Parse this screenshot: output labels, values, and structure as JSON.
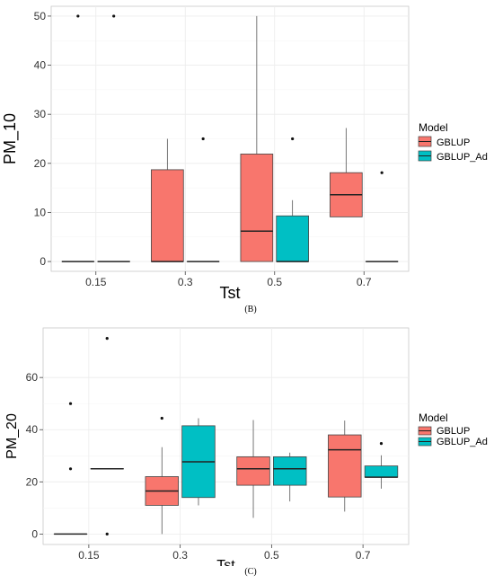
{
  "chart_data": [
    {
      "type": "box",
      "panel": "B",
      "xlabel": "Tst",
      "ylabel": "PM_10",
      "categories": [
        "0.15",
        "0.3",
        "0.5",
        "0.7"
      ],
      "ylim": [
        -2,
        52
      ],
      "yticks": [
        0,
        10,
        20,
        30,
        40,
        50
      ],
      "legend": {
        "title": "Model",
        "entries": [
          "GBLUP",
          "GBLUP_Ad"
        ],
        "placement": "right"
      },
      "series": [
        {
          "name": "GBLUP",
          "color": "#F8766D",
          "boxes": [
            {
              "category": "0.15",
              "min": 0,
              "q1": 0,
              "median": 0,
              "q3": 0,
              "max": 0,
              "outliers": [
                50
              ]
            },
            {
              "category": "0.3",
              "min": 0,
              "q1": 0,
              "median": 0,
              "q3": 18.7,
              "max": 25,
              "outliers": []
            },
            {
              "category": "0.5",
              "min": 0,
              "q1": 0,
              "median": 6.2,
              "q3": 21.9,
              "max": 50,
              "outliers": []
            },
            {
              "category": "0.7",
              "min": 9.1,
              "q1": 9.1,
              "median": 13.6,
              "q3": 18.1,
              "max": 27.2,
              "outliers": []
            }
          ]
        },
        {
          "name": "GBLUP_Ad",
          "color": "#00BFC4",
          "boxes": [
            {
              "category": "0.15",
              "min": 0,
              "q1": 0,
              "median": 0,
              "q3": 0,
              "max": 0,
              "outliers": [
                50
              ]
            },
            {
              "category": "0.3",
              "min": 0,
              "q1": 0,
              "median": 0,
              "q3": 0,
              "max": 0,
              "outliers": [
                25
              ]
            },
            {
              "category": "0.5",
              "min": 0,
              "q1": 0,
              "median": 0,
              "q3": 9.3,
              "max": 12.5,
              "outliers": [
                25
              ]
            },
            {
              "category": "0.7",
              "min": 0,
              "q1": 0,
              "median": 0,
              "q3": 0,
              "max": 0,
              "outliers": [
                18.1
              ]
            }
          ]
        }
      ]
    },
    {
      "type": "box",
      "panel": "C",
      "xlabel": "Tst",
      "ylabel": "PM_20",
      "categories": [
        "0.15",
        "0.3",
        "0.5",
        "0.7"
      ],
      "ylim": [
        -4,
        79
      ],
      "yticks": [
        0,
        20,
        40,
        60
      ],
      "legend": {
        "title": "Model",
        "entries": [
          "GBLUP",
          "GBLUP_Ad"
        ],
        "placement": "right"
      },
      "series": [
        {
          "name": "GBLUP",
          "color": "#F8766D",
          "boxes": [
            {
              "category": "0.15",
              "min": 0,
              "q1": 0,
              "median": 0,
              "q3": 0,
              "max": 0,
              "outliers": [
                25,
                50
              ]
            },
            {
              "category": "0.3",
              "min": 0,
              "q1": 11,
              "median": 16.5,
              "q3": 22,
              "max": 33.3,
              "outliers": [
                44.4
              ]
            },
            {
              "category": "0.5",
              "min": 6.2,
              "q1": 18.7,
              "median": 25,
              "q3": 29.6,
              "max": 43.7,
              "outliers": []
            },
            {
              "category": "0.7",
              "min": 8.6,
              "q1": 14.2,
              "median": 32.3,
              "q3": 38,
              "max": 43.5,
              "outliers": []
            }
          ]
        },
        {
          "name": "GBLUP_Ad",
          "color": "#00BFC4",
          "boxes": [
            {
              "category": "0.15",
              "min": 25,
              "q1": 25,
              "median": 25,
              "q3": 25,
              "max": 25,
              "outliers": [
                0,
                75
              ]
            },
            {
              "category": "0.3",
              "min": 11,
              "q1": 14,
              "median": 27.7,
              "q3": 41.5,
              "max": 44.4,
              "outliers": []
            },
            {
              "category": "0.5",
              "min": 12.5,
              "q1": 18.7,
              "median": 25,
              "q3": 29.6,
              "max": 31.2,
              "outliers": []
            },
            {
              "category": "0.7",
              "min": 17.4,
              "q1": 21.8,
              "median": 21.8,
              "q3": 26.1,
              "max": 30.2,
              "outliers": [
                34.7
              ]
            }
          ]
        }
      ]
    }
  ],
  "captions": {
    "b": "(B)",
    "c": "(C)"
  }
}
